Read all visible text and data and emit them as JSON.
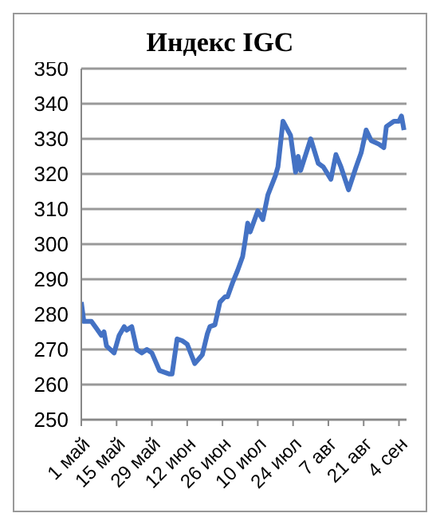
{
  "chart_data": {
    "type": "line",
    "title": "Индекс IGC",
    "x": [
      "--05-01",
      "--05-02",
      "--05-05",
      "--05-07",
      "--05-09",
      "--05-10",
      "--05-11",
      "--05-14",
      "--05-16",
      "--05-18",
      "--05-19",
      "--05-21",
      "--05-23",
      "--05-25",
      "--05-27",
      "--05-29",
      "--06-01",
      "--06-05",
      "--06-06",
      "--06-08",
      "--06-10",
      "--06-12",
      "--06-15",
      "--06-18",
      "--06-20",
      "--06-21",
      "--06-23",
      "--06-25",
      "--06-27",
      "--06-28",
      "--06-30",
      "--07-02",
      "--07-04",
      "--07-05",
      "--07-06",
      "--07-07",
      "--07-10",
      "--07-12",
      "--07-14",
      "--07-17",
      "--07-18",
      "--07-20",
      "--07-23",
      "--07-25",
      "--07-26",
      "--07-27",
      "--07-31",
      "--08-03",
      "--08-05",
      "--08-08",
      "--08-10",
      "--08-12",
      "--08-15",
      "--08-18",
      "--08-20",
      "--08-22",
      "--08-24",
      "--08-27",
      "--08-29",
      "--08-30",
      "--09-02",
      "--09-04",
      "--09-05",
      "--09-06"
    ],
    "series": [
      {
        "color": "#4472c4",
        "values": [
          283.5,
          278,
          278,
          276,
          274,
          275,
          271,
          269,
          274,
          276.5,
          275.5,
          276.5,
          270,
          269,
          270,
          269,
          264,
          263,
          263,
          273,
          272.5,
          271.5,
          266,
          268.5,
          274.5,
          276.5,
          277,
          283.5,
          285,
          285,
          289,
          292.5,
          296.5,
          301,
          306,
          303.5,
          309.5,
          307,
          314,
          319.5,
          322,
          335,
          331,
          320.5,
          325,
          321,
          330,
          323,
          322,
          318.5,
          325.5,
          322,
          315.5,
          322,
          326,
          332.5,
          329.5,
          328.5,
          327.5,
          333.5,
          335,
          335,
          336.5,
          332.5
        ]
      }
    ],
    "xlim": [
      "--05-01",
      "--09-07"
    ],
    "xticks": [
      {
        "value": "--05-01",
        "label": "1 май"
      },
      {
        "value": "--05-15",
        "label": "15 май"
      },
      {
        "value": "--05-29",
        "label": "29 май"
      },
      {
        "value": "--06-12",
        "label": "12 июн"
      },
      {
        "value": "--06-26",
        "label": "26 июн"
      },
      {
        "value": "--07-10",
        "label": "10 июл"
      },
      {
        "value": "--07-24",
        "label": "24 июл"
      },
      {
        "value": "--08-07",
        "label": "7 авг"
      },
      {
        "value": "--08-21",
        "label": "21 авг"
      },
      {
        "value": "--09-04",
        "label": "4 сен"
      }
    ],
    "ylim": [
      250,
      350
    ],
    "yticks": [
      250,
      260,
      270,
      280,
      290,
      300,
      310,
      320,
      330,
      340,
      350
    ],
    "grid": "y",
    "legend": false,
    "marker": "none",
    "line_style": "solid"
  }
}
